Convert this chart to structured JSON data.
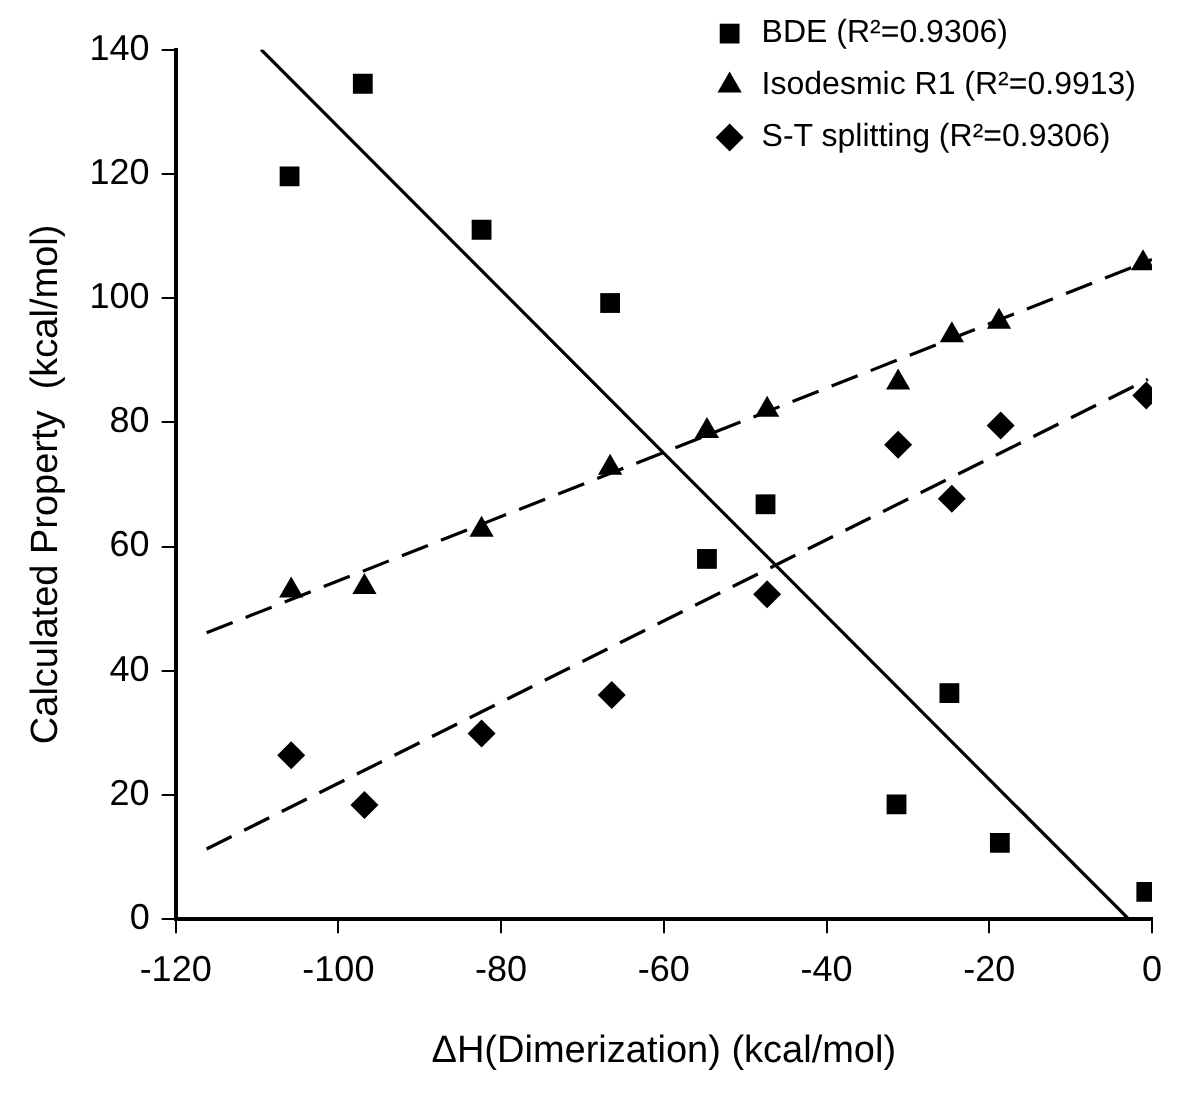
{
  "chart_data": {
    "type": "scatter",
    "xlabel": "ΔH(Dimerization) (kcal/mol)",
    "ylabel": "Calculated Property  (kcal/mol)",
    "xlim": [
      -120,
      0
    ],
    "xticks": [
      -120,
      -100,
      -80,
      -60,
      -40,
      -20,
      0
    ],
    "ylim": [
      0,
      140
    ],
    "yticks": [
      0,
      20,
      40,
      60,
      80,
      100,
      120,
      140
    ],
    "grid": false,
    "legend": "top right",
    "series": [
      {
        "name": "BDE (R²=0.9306)",
        "type": "scatter",
        "marker": "square",
        "color": "#000000",
        "x": [
          -106,
          -97,
          -82.4,
          -66.6,
          -54.7,
          -47.5,
          -31.4,
          -24.9,
          -18.7,
          -0.7
        ],
        "values": [
          119.6,
          134.5,
          111,
          99.2,
          58,
          66.8,
          18.5,
          36.4,
          12.3,
          4.4
        ]
      },
      {
        "name": "Isodesmic R1 (R²=0.9913)",
        "type": "scatter",
        "marker": "triangle",
        "color": "#000000",
        "x": [
          -105.8,
          -96.8,
          -82.4,
          -66.6,
          -54.7,
          -47.3,
          -31.2,
          -24.6,
          -18.8,
          -1.1
        ],
        "values": [
          52.9,
          53.5,
          62.7,
          72.7,
          78.6,
          82,
          86.4,
          94,
          96.2,
          105.6
        ]
      },
      {
        "name": "S-T splitting (R²=0.9306)",
        "type": "scatter",
        "marker": "diamond",
        "color": "#000000",
        "x": [
          -105.8,
          -96.8,
          -82.4,
          -66.4,
          -54.7,
          -47.3,
          -31.2,
          -24.6,
          -18.6,
          -0.7
        ],
        "values": [
          26.4,
          18.4,
          29.9,
          36.1,
          null,
          52.3,
          76.4,
          67.7,
          79.5,
          84.3
        ]
      },
      {
        "type": "line",
        "marker": "none",
        "line_style": "solid",
        "color": "#000000",
        "x": [
          -109.5,
          -3
        ],
        "values": [
          140,
          0.2
        ]
      },
      {
        "type": "line",
        "marker": "none",
        "line_style": "dashed",
        "color": "#000000",
        "x": [
          -116.2,
          0
        ],
        "values": [
          46.1,
          106.2
        ]
      },
      {
        "type": "line",
        "marker": "none",
        "line_style": "dashed",
        "color": "#000000",
        "x": [
          -116.2,
          -0.5
        ],
        "values": [
          11.3,
          86.9
        ]
      }
    ]
  }
}
